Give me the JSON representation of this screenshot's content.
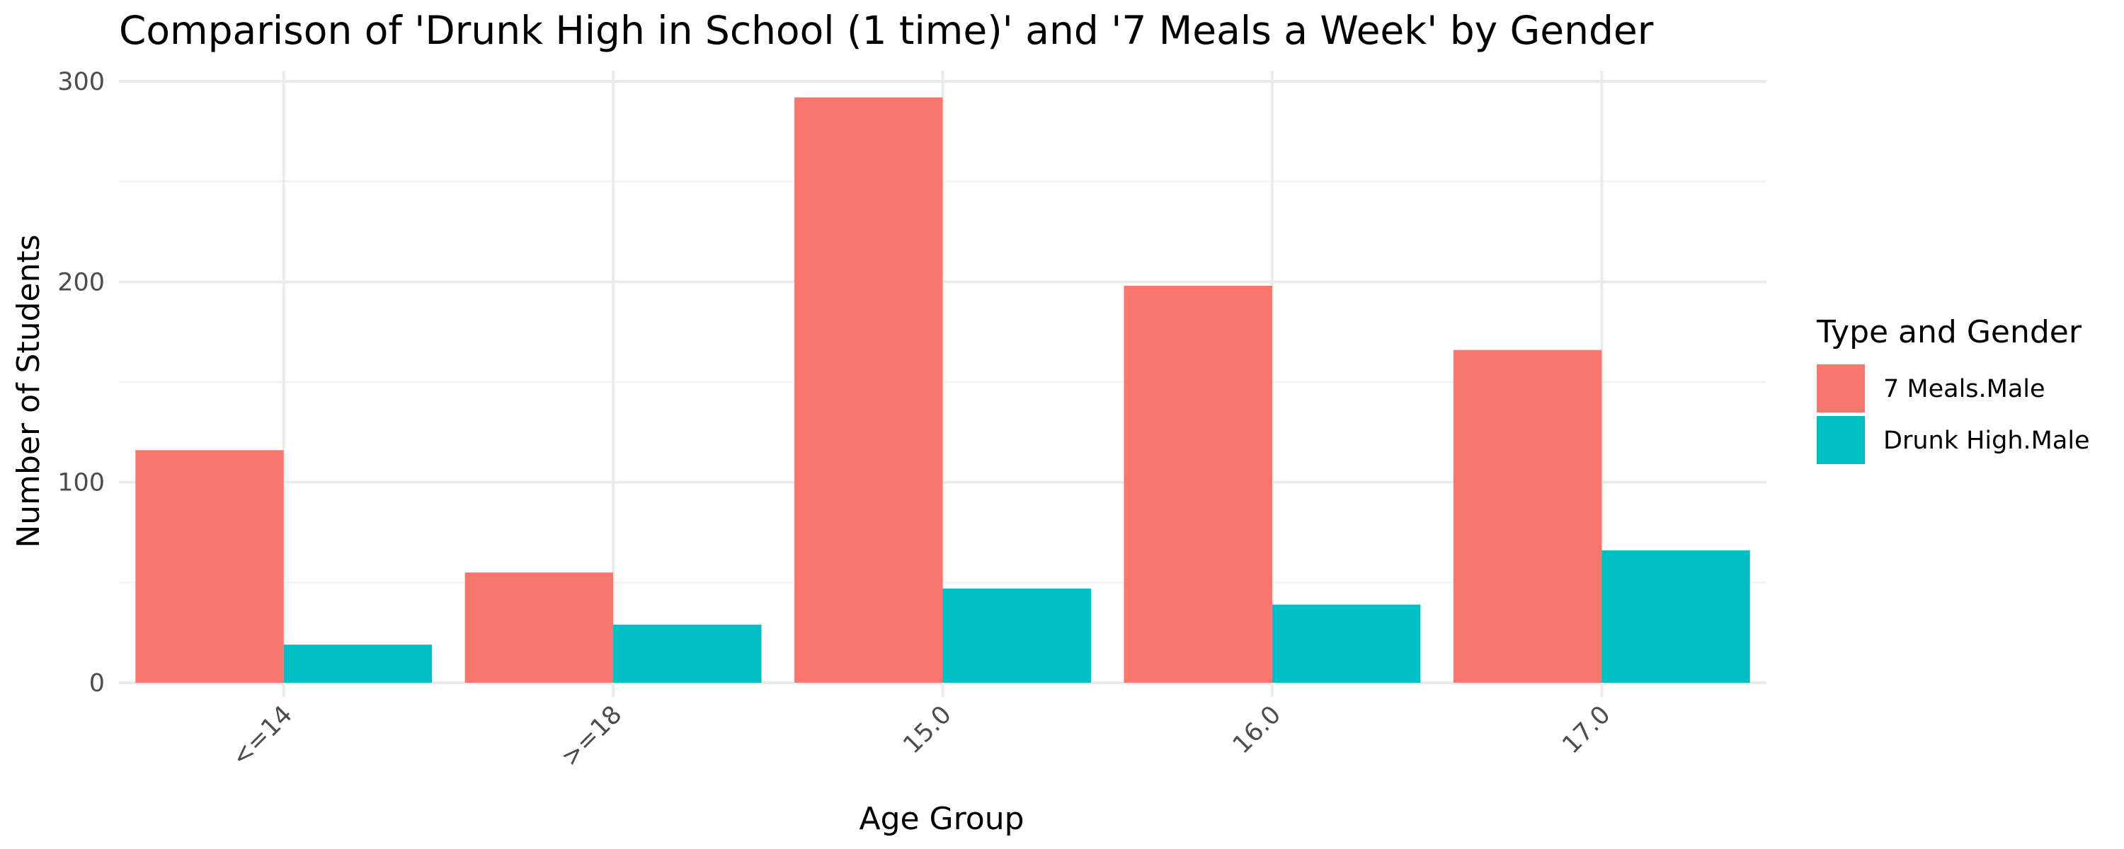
{
  "chart_data": {
    "type": "bar",
    "title": "Comparison of 'Drunk High in School (1 time)' and '7 Meals a Week' by Gender",
    "xlabel": "Age Group",
    "ylabel": "Number of Students",
    "categories": [
      "<=14",
      ">=18",
      "15.0",
      "16.0",
      "17.0"
    ],
    "series": [
      {
        "name": "7 Meals.Male",
        "color": "#F8766D",
        "values": [
          116,
          55,
          292,
          198,
          166
        ]
      },
      {
        "name": "Drunk High.Male",
        "color": "#00BFC4",
        "values": [
          19,
          29,
          47,
          39,
          66
        ]
      }
    ],
    "ylim": [
      0,
      305
    ],
    "yticks": [
      0,
      100,
      200,
      300
    ],
    "grid": true,
    "legend": {
      "title": "Type and Gender",
      "position": "right"
    },
    "bar_layout": "dodged"
  }
}
